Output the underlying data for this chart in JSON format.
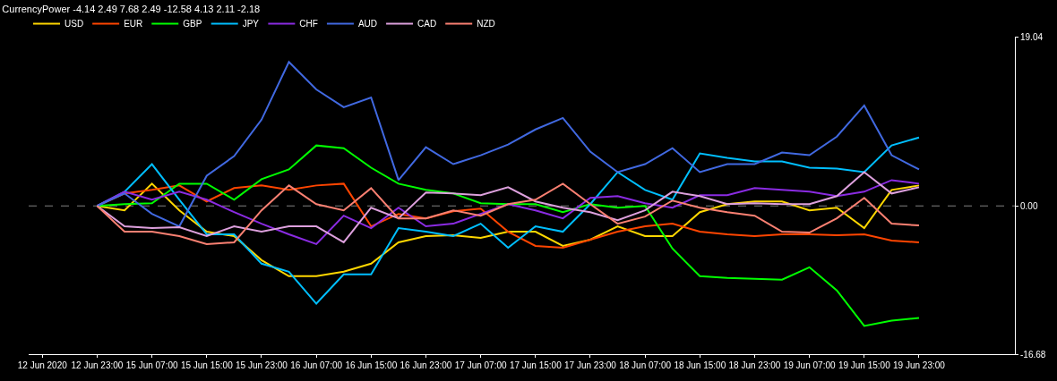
{
  "chart_data": {
    "type": "line",
    "title": "CurrencyPower -4.14 2.49 7.68 2.49 -12.58 4.13 2.11 -2.18",
    "categories": [
      "12 Jun 2020",
      null,
      "12 Jun 23:00",
      null,
      "15 Jun 07:00",
      null,
      "15 Jun 15:00",
      null,
      "15 Jun 23:00",
      null,
      "16 Jun 07:00",
      null,
      "16 Jun 15:00",
      null,
      "16 Jun 23:00",
      null,
      "17 Jun 07:00",
      null,
      "17 Jun 15:00",
      null,
      "17 Jun 23:00",
      null,
      "18 Jun 07:00",
      null,
      "18 Jun 15:00",
      null,
      "18 Jun 23:00",
      null,
      "19 Jun 07:00",
      null,
      "19 Jun 15:00",
      null,
      "19 Jun 23:00",
      null,
      null,
      null
    ],
    "series": [
      {
        "name": "USD",
        "color": "#ffd700",
        "values": [
          null,
          null,
          0,
          -0.5,
          2.5,
          -0.5,
          -2.9,
          -3.4,
          -6.1,
          -7.9,
          -7.9,
          -7.4,
          -6.5,
          -4.1,
          -3.4,
          -3.3,
          -3.6,
          -2.9,
          -2.9,
          -4.5,
          -3.8,
          -2.3,
          -3.4,
          -3.4,
          -0.7,
          0.2,
          0.5,
          0.5,
          -0.5,
          -0.2,
          -2.5,
          1.8,
          2.3,
          null,
          null,
          null
        ]
      },
      {
        "name": "EUR",
        "color": "#ff4500",
        "values": [
          null,
          null,
          0,
          1.4,
          1.8,
          2.3,
          0.5,
          2.0,
          2.3,
          1.8,
          2.3,
          2.5,
          -2.3,
          -0.9,
          -1.4,
          -0.6,
          -0.3,
          -2.9,
          -4.5,
          -4.7,
          -3.8,
          -2.9,
          -2.3,
          -2.0,
          -2.9,
          -3.2,
          -3.4,
          -3.2,
          -3.2,
          -3.3,
          -3.2,
          -3.9,
          -4.1,
          null,
          null,
          null
        ]
      },
      {
        "name": "GBP",
        "color": "#00ff00",
        "values": [
          null,
          null,
          0,
          0.2,
          0.3,
          2.5,
          2.5,
          0.7,
          3.0,
          4.1,
          6.8,
          6.5,
          4.3,
          2.5,
          1.8,
          1.4,
          0.3,
          0.2,
          0.2,
          -0.7,
          0.2,
          -0.2,
          0,
          -4.8,
          -7.9,
          -8.1,
          -8.2,
          -8.3,
          -6.9,
          -9.5,
          -13.5,
          -12.9,
          -12.6,
          null,
          null,
          null
        ]
      },
      {
        "name": "JPY",
        "color": "#00bfff",
        "values": [
          null,
          null,
          0,
          1.6,
          4.7,
          0.7,
          -3.2,
          -3.2,
          -6.5,
          -7.4,
          -11.0,
          -7.7,
          -7.7,
          -2.5,
          -2.9,
          -3.4,
          -2.0,
          -4.7,
          -2.3,
          -2.9,
          0.2,
          3.8,
          1.8,
          0.7,
          5.9,
          5.4,
          5.0,
          5.0,
          4.3,
          4.2,
          3.8,
          6.8,
          7.7,
          null,
          null,
          null
        ]
      },
      {
        "name": "CHF",
        "color": "#8a2be2",
        "values": [
          null,
          null,
          0,
          1.6,
          0.7,
          1.6,
          0.7,
          -0.7,
          -2.0,
          -3.2,
          -4.3,
          -1.1,
          -2.5,
          -0.2,
          -2.3,
          -2.0,
          -0.9,
          0.2,
          -0.5,
          -1.4,
          0.9,
          1.1,
          0.3,
          -0.2,
          1.2,
          1.2,
          2.0,
          1.8,
          1.6,
          1.1,
          1.6,
          2.9,
          2.5,
          null,
          null,
          null
        ]
      },
      {
        "name": "AUD",
        "color": "#4169e1",
        "values": [
          null,
          null,
          0,
          1.4,
          -0.9,
          -2.3,
          3.4,
          5.6,
          9.7,
          16.2,
          13.1,
          11.1,
          12.2,
          2.9,
          6.6,
          4.7,
          5.7,
          6.9,
          8.6,
          9.9,
          6.1,
          3.8,
          4.7,
          6.5,
          3.8,
          4.7,
          4.7,
          6.0,
          5.7,
          7.8,
          11.3,
          5.7,
          4.1,
          null,
          null,
          null
        ]
      },
      {
        "name": "CAD",
        "color": "#dda0dd",
        "values": [
          null,
          null,
          0,
          -2.3,
          -2.5,
          -2.4,
          -3.4,
          -2.3,
          -2.9,
          -2.3,
          -2.3,
          -4.1,
          -0.2,
          -1.4,
          1.5,
          1.4,
          1.2,
          2.1,
          0.5,
          -0.2,
          -0.7,
          -1.6,
          -0.5,
          1.6,
          1.1,
          0.2,
          0.3,
          0.2,
          0.2,
          1.1,
          3.8,
          1.4,
          2.1,
          null,
          null,
          null
        ]
      },
      {
        "name": "NZD",
        "color": "#fa8072",
        "values": [
          null,
          null,
          0,
          -2.9,
          -2.9,
          -3.4,
          -4.3,
          -4.1,
          -0.5,
          2.3,
          0.2,
          -0.5,
          2.0,
          -1.4,
          -1.4,
          -0.5,
          -1.1,
          0.2,
          0.7,
          2.5,
          0.2,
          -2.0,
          -1.2,
          0.6,
          -0.2,
          -0.7,
          -1.1,
          -2.9,
          -3.0,
          -1.4,
          0.9,
          -2.0,
          -2.2,
          null,
          null,
          null
        ]
      }
    ],
    "ylim": [
      -16.68,
      19.04
    ],
    "yticks": [
      {
        "value": 19.04,
        "label": "19.04"
      },
      {
        "value": 0,
        "label": "0.00"
      },
      {
        "value": -16.68,
        "label": "-16.68"
      }
    ],
    "ref_lines": [
      {
        "axis": "y",
        "value": 0,
        "color": "#808080",
        "line_style": "dashed"
      }
    ],
    "grid": false,
    "legend": "top left"
  }
}
